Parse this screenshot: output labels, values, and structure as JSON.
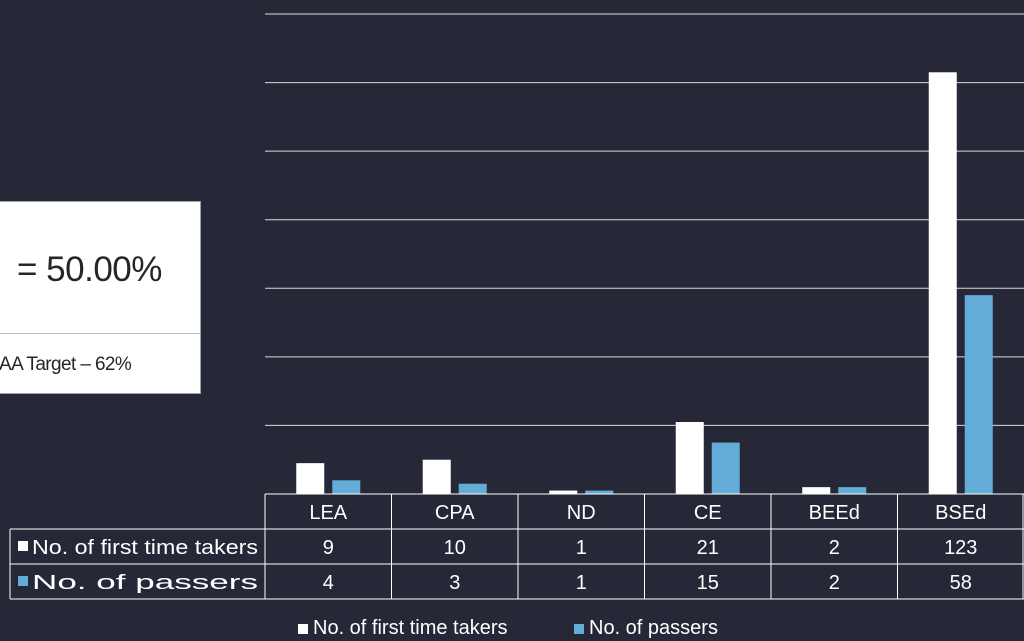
{
  "callout": {
    "rate_text": "= 50.00%",
    "target_text": "AA Target – 62%"
  },
  "colors": {
    "background": "#262838",
    "first_time_takers": "#ffffff",
    "passers": "#64acd8",
    "gridline": "#d9dbe0"
  },
  "chart_data": {
    "type": "bar",
    "categories": [
      "LEA",
      "CPA",
      "ND",
      "CE",
      "BEEd",
      "BSEd"
    ],
    "series": [
      {
        "name": "No. of first time takers",
        "values": [
          9,
          10,
          1,
          21,
          2,
          123
        ]
      },
      {
        "name": "No. of passers",
        "values": [
          4,
          3,
          1,
          15,
          2,
          58
        ]
      }
    ],
    "ylim": [
      0,
      140
    ],
    "y_gridline_step": 20,
    "grid": true,
    "data_table": true,
    "legend_position": "bottom"
  }
}
